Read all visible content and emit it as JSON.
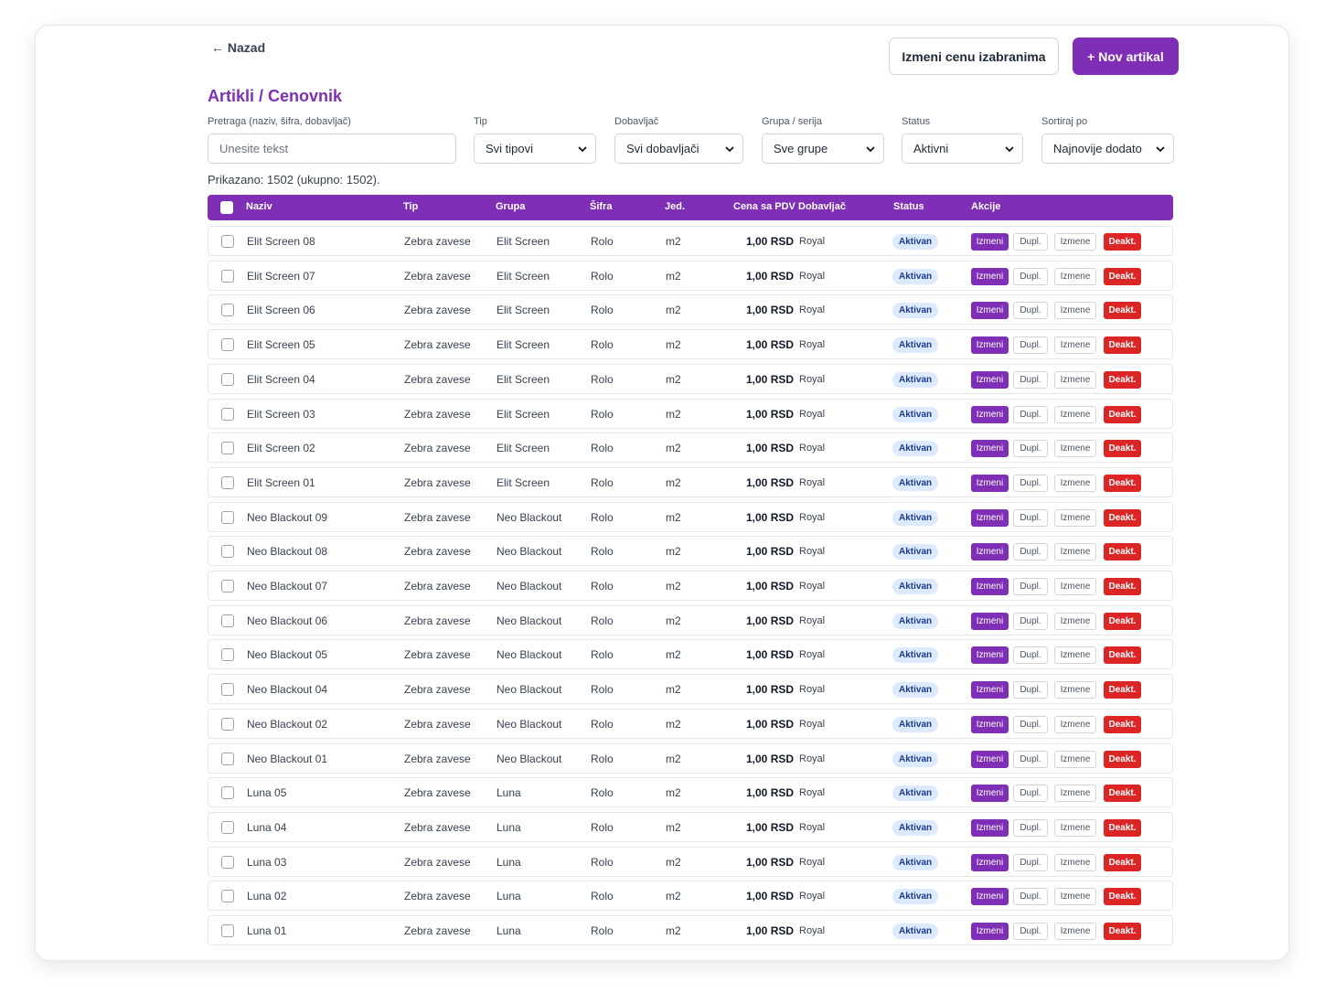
{
  "nav": {
    "back_label": "← Nazad"
  },
  "toolbar": {
    "change_price_label": "Izmeni cenu izabranima",
    "new_item_label": "+ Nov artikal"
  },
  "page": {
    "title": "Artikli / Cenovnik"
  },
  "filters": {
    "search": {
      "label": "Pretraga (naziv, šifra, dobavljač)",
      "placeholder": "Unesite tekst",
      "value": ""
    },
    "type": {
      "label": "Tip",
      "value": "Svi tipovi"
    },
    "supplier": {
      "label": "Dobavljač",
      "value": "Svi dobavljači"
    },
    "group": {
      "label": "Grupa / serija",
      "value": "Sve grupe"
    },
    "status": {
      "label": "Status",
      "value": "Aktivni"
    },
    "sort": {
      "label": "Sortiraj po",
      "value": "Najnovije dodato"
    }
  },
  "summary": "Prikazano: 1502 (ukupno: 1502).",
  "table": {
    "headers": {
      "name": "Naziv",
      "type": "Tip",
      "group": "Grupa",
      "code": "Šifra",
      "unit": "Jed.",
      "price": "Cena sa PDV",
      "supplier": "Dobavljač",
      "status": "Status",
      "actions": "Akcije"
    },
    "action_labels": {
      "edit": "Izmeni",
      "duplicate": "Dupl.",
      "changes": "Izmene",
      "deactivate": "Deakt."
    },
    "rows": [
      {
        "name": "Elit Screen 08",
        "type": "Zebra zavese",
        "group": "Elit Screen",
        "code": "Rolo",
        "unit": "m2",
        "price": "1,00 RSD",
        "supplier": "Royal",
        "status": "Aktivan"
      },
      {
        "name": "Elit Screen 07",
        "type": "Zebra zavese",
        "group": "Elit Screen",
        "code": "Rolo",
        "unit": "m2",
        "price": "1,00 RSD",
        "supplier": "Royal",
        "status": "Aktivan"
      },
      {
        "name": "Elit Screen 06",
        "type": "Zebra zavese",
        "group": "Elit Screen",
        "code": "Rolo",
        "unit": "m2",
        "price": "1,00 RSD",
        "supplier": "Royal",
        "status": "Aktivan"
      },
      {
        "name": "Elit Screen 05",
        "type": "Zebra zavese",
        "group": "Elit Screen",
        "code": "Rolo",
        "unit": "m2",
        "price": "1,00 RSD",
        "supplier": "Royal",
        "status": "Aktivan"
      },
      {
        "name": "Elit Screen 04",
        "type": "Zebra zavese",
        "group": "Elit Screen",
        "code": "Rolo",
        "unit": "m2",
        "price": "1,00 RSD",
        "supplier": "Royal",
        "status": "Aktivan"
      },
      {
        "name": "Elit Screen 03",
        "type": "Zebra zavese",
        "group": "Elit Screen",
        "code": "Rolo",
        "unit": "m2",
        "price": "1,00 RSD",
        "supplier": "Royal",
        "status": "Aktivan"
      },
      {
        "name": "Elit Screen 02",
        "type": "Zebra zavese",
        "group": "Elit Screen",
        "code": "Rolo",
        "unit": "m2",
        "price": "1,00 RSD",
        "supplier": "Royal",
        "status": "Aktivan"
      },
      {
        "name": "Elit Screen 01",
        "type": "Zebra zavese",
        "group": "Elit Screen",
        "code": "Rolo",
        "unit": "m2",
        "price": "1,00 RSD",
        "supplier": "Royal",
        "status": "Aktivan"
      },
      {
        "name": "Neo Blackout 09",
        "type": "Zebra zavese",
        "group": "Neo Blackout",
        "code": "Rolo",
        "unit": "m2",
        "price": "1,00 RSD",
        "supplier": "Royal",
        "status": "Aktivan"
      },
      {
        "name": "Neo Blackout 08",
        "type": "Zebra zavese",
        "group": "Neo Blackout",
        "code": "Rolo",
        "unit": "m2",
        "price": "1,00 RSD",
        "supplier": "Royal",
        "status": "Aktivan"
      },
      {
        "name": "Neo Blackout 07",
        "type": "Zebra zavese",
        "group": "Neo Blackout",
        "code": "Rolo",
        "unit": "m2",
        "price": "1,00 RSD",
        "supplier": "Royal",
        "status": "Aktivan"
      },
      {
        "name": "Neo Blackout 06",
        "type": "Zebra zavese",
        "group": "Neo Blackout",
        "code": "Rolo",
        "unit": "m2",
        "price": "1,00 RSD",
        "supplier": "Royal",
        "status": "Aktivan"
      },
      {
        "name": "Neo Blackout 05",
        "type": "Zebra zavese",
        "group": "Neo Blackout",
        "code": "Rolo",
        "unit": "m2",
        "price": "1,00 RSD",
        "supplier": "Royal",
        "status": "Aktivan"
      },
      {
        "name": "Neo Blackout 04",
        "type": "Zebra zavese",
        "group": "Neo Blackout",
        "code": "Rolo",
        "unit": "m2",
        "price": "1,00 RSD",
        "supplier": "Royal",
        "status": "Aktivan"
      },
      {
        "name": "Neo Blackout 02",
        "type": "Zebra zavese",
        "group": "Neo Blackout",
        "code": "Rolo",
        "unit": "m2",
        "price": "1,00 RSD",
        "supplier": "Royal",
        "status": "Aktivan"
      },
      {
        "name": "Neo Blackout 01",
        "type": "Zebra zavese",
        "group": "Neo Blackout",
        "code": "Rolo",
        "unit": "m2",
        "price": "1,00 RSD",
        "supplier": "Royal",
        "status": "Aktivan"
      },
      {
        "name": "Luna 05",
        "type": "Zebra zavese",
        "group": "Luna",
        "code": "Rolo",
        "unit": "m2",
        "price": "1,00 RSD",
        "supplier": "Royal",
        "status": "Aktivan"
      },
      {
        "name": "Luna 04",
        "type": "Zebra zavese",
        "group": "Luna",
        "code": "Rolo",
        "unit": "m2",
        "price": "1,00 RSD",
        "supplier": "Royal",
        "status": "Aktivan"
      },
      {
        "name": "Luna 03",
        "type": "Zebra zavese",
        "group": "Luna",
        "code": "Rolo",
        "unit": "m2",
        "price": "1,00 RSD",
        "supplier": "Royal",
        "status": "Aktivan"
      },
      {
        "name": "Luna 02",
        "type": "Zebra zavese",
        "group": "Luna",
        "code": "Rolo",
        "unit": "m2",
        "price": "1,00 RSD",
        "supplier": "Royal",
        "status": "Aktivan"
      },
      {
        "name": "Luna 01",
        "type": "Zebra zavese",
        "group": "Luna",
        "code": "Rolo",
        "unit": "m2",
        "price": "1,00 RSD",
        "supplier": "Royal",
        "status": "Aktivan"
      }
    ]
  },
  "colors": {
    "accent": "#7e2fb6",
    "danger": "#dc2626",
    "badge_bg": "#dbeafe",
    "badge_text": "#1f3a8a"
  },
  "icons": {
    "select_arrow": "chevron-down-icon",
    "checkbox": "checkbox-icon"
  }
}
